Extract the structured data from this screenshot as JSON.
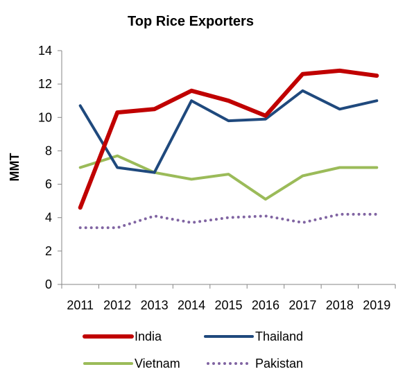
{
  "chart_data": {
    "type": "line",
    "title": "Top Rice Exporters",
    "xlabel": "",
    "ylabel": "MMT",
    "x": [
      "2011",
      "2012",
      "2013",
      "2014",
      "2015",
      "2016",
      "2017",
      "2018",
      "2019"
    ],
    "ylim": [
      0,
      14
    ],
    "yticks": [
      0,
      2,
      4,
      6,
      8,
      10,
      12,
      14
    ],
    "grid": false,
    "legend": "bottom",
    "series": [
      {
        "name": "India",
        "values": [
          4.6,
          10.3,
          10.5,
          11.6,
          11.0,
          10.1,
          12.6,
          12.8,
          12.5
        ],
        "color": "#c00000",
        "style": "solid"
      },
      {
        "name": "Thailand",
        "values": [
          10.7,
          7.0,
          6.7,
          11.0,
          9.8,
          9.9,
          11.6,
          10.5,
          11.0
        ],
        "color": "#1f497d",
        "style": "solid"
      },
      {
        "name": "Vietnam",
        "values": [
          7.0,
          7.7,
          6.7,
          6.3,
          6.6,
          5.1,
          6.5,
          7.0,
          7.0
        ],
        "color": "#9bbb59",
        "style": "solid"
      },
      {
        "name": "Pakistan",
        "values": [
          3.4,
          3.4,
          4.1,
          3.7,
          4.0,
          4.1,
          3.7,
          4.2,
          4.2
        ],
        "color": "#8064a2",
        "style": "dotted"
      }
    ]
  }
}
